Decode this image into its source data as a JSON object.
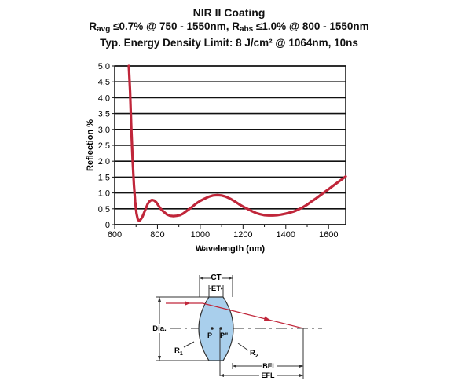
{
  "chart_data": {
    "type": "line",
    "title": "NIR II Coating",
    "subtitle": {
      "r_avg_label": "R",
      "r_avg_sub": "avg",
      "r_avg_text": " ≤0.7% @ 750 - 1550nm, ",
      "r_abs_label": "R",
      "r_abs_sub": "abs",
      "r_abs_text": " ≤1.0% @ 800 - 1550nm"
    },
    "subtitle2": "Typ. Energy Density Limit: 8 J/cm² @ 1064nm, 10ns",
    "xlabel": "Wavelength (nm)",
    "ylabel": "Reflection %",
    "xlim": [
      600,
      1680
    ],
    "ylim": [
      0,
      5.0
    ],
    "xticks": [
      "600",
      "800",
      "1000",
      "1200",
      "1400",
      "1600"
    ],
    "yticks": [
      "0",
      "0.5",
      "1.0",
      "1.5",
      "2.0",
      "2.5",
      "3.0",
      "3.5",
      "4.0",
      "4.5",
      "5.0"
    ],
    "grid": "horizontal",
    "line_color": "#c0263a",
    "series": [
      {
        "x": [
          666,
          672,
          678,
          684,
          690,
          696,
          702,
          708,
          714,
          720,
          728,
          736,
          745,
          755,
          765,
          775,
          785,
          795,
          805,
          815,
          830,
          845,
          860,
          875,
          890,
          905,
          920,
          940,
          960,
          980,
          1000,
          1020,
          1040,
          1060,
          1080,
          1100,
          1120,
          1140,
          1160,
          1180,
          1200,
          1220,
          1240,
          1260,
          1280,
          1300,
          1320,
          1340,
          1360,
          1380,
          1400,
          1420,
          1440,
          1460,
          1480,
          1500,
          1520,
          1540,
          1560,
          1580,
          1600,
          1620,
          1640,
          1660,
          1680
        ],
        "y": [
          5.0,
          4.2,
          3.0,
          2.0,
          1.25,
          0.72,
          0.35,
          0.17,
          0.12,
          0.15,
          0.22,
          0.35,
          0.5,
          0.66,
          0.75,
          0.78,
          0.76,
          0.7,
          0.6,
          0.5,
          0.4,
          0.32,
          0.28,
          0.27,
          0.28,
          0.3,
          0.35,
          0.45,
          0.55,
          0.66,
          0.75,
          0.82,
          0.88,
          0.92,
          0.93,
          0.92,
          0.88,
          0.82,
          0.74,
          0.65,
          0.57,
          0.5,
          0.43,
          0.37,
          0.33,
          0.3,
          0.29,
          0.29,
          0.3,
          0.32,
          0.35,
          0.38,
          0.42,
          0.48,
          0.55,
          0.63,
          0.73,
          0.82,
          0.92,
          1.02,
          1.12,
          1.22,
          1.32,
          1.42,
          1.52
        ]
      }
    ]
  },
  "diagram": {
    "labels": {
      "ct": "CT",
      "et": "ET",
      "dia": "Dia.",
      "p": "P",
      "p_double": "P\"",
      "r1": "R",
      "r1_sub": "1",
      "r2": "R",
      "r2_sub": "2",
      "bfl": "BFL",
      "efl": "EFL"
    },
    "colors": {
      "lens_fill": "#a9cfec",
      "lens_stroke": "#333333",
      "ray": "#c0263a"
    }
  }
}
